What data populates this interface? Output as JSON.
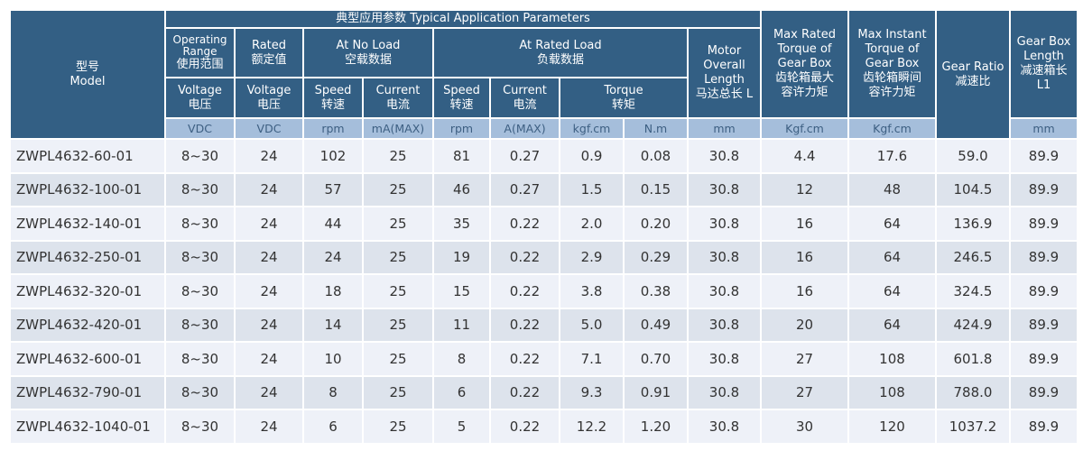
{
  "header": {
    "model": [
      "型号",
      "Model"
    ],
    "typical": "典型应用参数  Typical Application Parameters",
    "operating_range": [
      "Operating",
      "Range",
      "使用范围"
    ],
    "rated": [
      "Rated",
      "额定值"
    ],
    "no_load": [
      "At No Load",
      "空载数据"
    ],
    "rated_load": [
      "At Rated Load",
      "负载数据"
    ],
    "motor_length": [
      "Motor",
      "Overall",
      "Length",
      "马达总长 L"
    ],
    "max_rated_torque": [
      "Max Rated",
      "Torque of",
      "Gear Box",
      "齿轮箱最大",
      "容许力矩"
    ],
    "max_instant_torque": [
      "Max Instant",
      "Torque of",
      "Gear Box",
      "齿轮箱瞬间",
      "容许力矩"
    ],
    "gear_ratio": [
      "Gear Ratio",
      "减速比"
    ],
    "gearbox_length": [
      "Gear Box",
      "Length",
      "减速箱长",
      "L1"
    ],
    "voltage1": [
      "Voltage",
      "电压"
    ],
    "voltage2": [
      "Voltage",
      "电压"
    ],
    "speed1": [
      "Speed",
      "转速"
    ],
    "current1": [
      "Current",
      "电流"
    ],
    "speed2": [
      "Speed",
      "转速"
    ],
    "current2": [
      "Current",
      "电流"
    ],
    "torque": [
      "Torque",
      "转矩"
    ],
    "units": [
      "VDC",
      "VDC",
      "rpm",
      "mA(MAX)",
      "rpm",
      "A(MAX)",
      "kgf.cm",
      "N.m",
      "mm",
      "Kgf.cm",
      "Kgf.cm",
      "mm"
    ]
  },
  "rows": [
    [
      "ZWPL4632-60-01",
      "8~30",
      "24",
      "102",
      "25",
      "81",
      "0.27",
      "0.9",
      "0.08",
      "30.8",
      "4.4",
      "17.6",
      "59.0",
      "89.9"
    ],
    [
      "ZWPL4632-100-01",
      "8~30",
      "24",
      "57",
      "25",
      "46",
      "0.27",
      "1.5",
      "0.15",
      "30.8",
      "12",
      "48",
      "104.5",
      "89.9"
    ],
    [
      "ZWPL4632-140-01",
      "8~30",
      "24",
      "44",
      "25",
      "35",
      "0.22",
      "2.0",
      "0.20",
      "30.8",
      "16",
      "64",
      "136.9",
      "89.9"
    ],
    [
      "ZWPL4632-250-01",
      "8~30",
      "24",
      "24",
      "25",
      "19",
      "0.22",
      "2.9",
      "0.29",
      "30.8",
      "16",
      "64",
      "246.5",
      "89.9"
    ],
    [
      "ZWPL4632-320-01",
      "8~30",
      "24",
      "18",
      "25",
      "15",
      "0.22",
      "3.8",
      "0.38",
      "30.8",
      "16",
      "64",
      "324.5",
      "89.9"
    ],
    [
      "ZWPL4632-420-01",
      "8~30",
      "24",
      "14",
      "25",
      "11",
      "0.22",
      "5.0",
      "0.49",
      "30.8",
      "20",
      "64",
      "424.9",
      "89.9"
    ],
    [
      "ZWPL4632-600-01",
      "8~30",
      "24",
      "10",
      "25",
      "8",
      "0.22",
      "7.1",
      "0.70",
      "30.8",
      "27",
      "108",
      "601.8",
      "89.9"
    ],
    [
      "ZWPL4632-790-01",
      "8~30",
      "24",
      "8",
      "25",
      "6",
      "0.22",
      "9.3",
      "0.91",
      "30.8",
      "27",
      "108",
      "788.0",
      "89.9"
    ],
    [
      "ZWPL4632-1040-01",
      "8~30",
      "24",
      "6",
      "25",
      "5",
      "0.22",
      "12.2",
      "1.20",
      "30.8",
      "30",
      "120",
      "1037.2",
      "89.9"
    ]
  ],
  "colors": {
    "header": "#335f84",
    "units": "#a5bedb",
    "row_odd": "#eef1f8",
    "row_even": "#dde3ec"
  }
}
